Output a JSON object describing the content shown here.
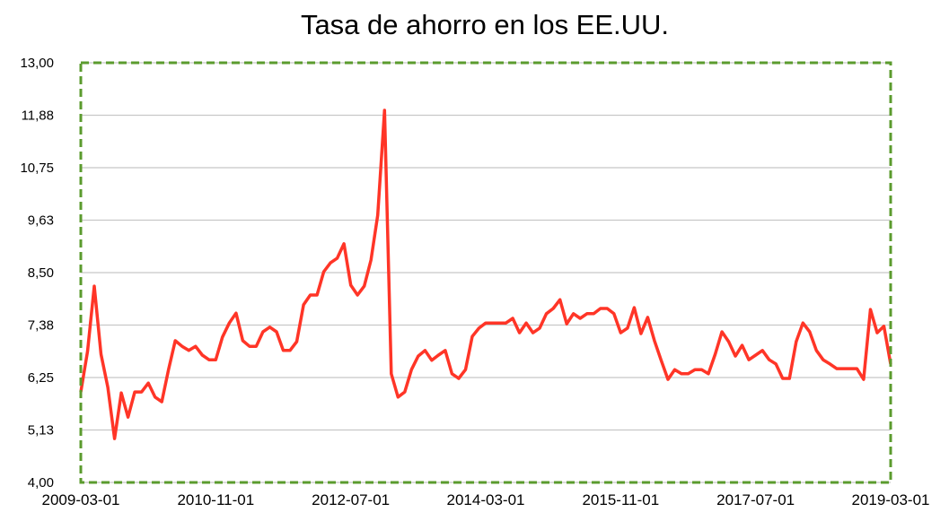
{
  "chart_data": {
    "type": "line",
    "title": "Tasa de ahorro en los EE.UU.",
    "xlabel": "",
    "ylabel": "",
    "x_start": "2009-03-01",
    "x_end": "2019-03-01",
    "x_frequency": "monthly",
    "x_tick_labels": [
      "2009-03-01",
      "2010-11-01",
      "2012-07-01",
      "2014-03-01",
      "2015-11-01",
      "2017-07-01",
      "2019-03-01"
    ],
    "y_tick_labels": [
      "4,00",
      "5,13",
      "6,25",
      "7,38",
      "8,50",
      "9,63",
      "10,75",
      "11,88",
      "13,00"
    ],
    "ylim": [
      4.0,
      13.0
    ],
    "grid": true,
    "legend": "none",
    "colors": {
      "series": "#ff3527",
      "frame": "#5b9b2e",
      "grid": "#c8c8c8"
    },
    "series": [
      {
        "name": "Tasa de ahorro",
        "values": [
          5.94,
          6.81,
          8.21,
          6.75,
          6.04,
          4.94,
          5.92,
          5.4,
          5.94,
          5.94,
          6.13,
          5.83,
          5.73,
          6.42,
          7.04,
          6.92,
          6.83,
          6.92,
          6.73,
          6.63,
          6.63,
          7.12,
          7.42,
          7.63,
          7.04,
          6.92,
          6.92,
          7.23,
          7.33,
          7.23,
          6.83,
          6.83,
          7.02,
          7.81,
          8.02,
          8.02,
          8.52,
          8.71,
          8.81,
          9.12,
          8.23,
          8.02,
          8.21,
          8.77,
          9.73,
          11.98,
          6.33,
          5.83,
          5.94,
          6.42,
          6.71,
          6.83,
          6.62,
          6.73,
          6.83,
          6.33,
          6.23,
          6.42,
          7.13,
          7.31,
          7.42,
          7.42,
          7.42,
          7.42,
          7.52,
          7.21,
          7.42,
          7.21,
          7.31,
          7.62,
          7.73,
          7.92,
          7.4,
          7.62,
          7.52,
          7.62,
          7.62,
          7.73,
          7.73,
          7.62,
          7.21,
          7.31,
          7.75,
          7.19,
          7.54,
          7.04,
          6.62,
          6.21,
          6.42,
          6.33,
          6.33,
          6.42,
          6.42,
          6.33,
          6.75,
          7.23,
          7.02,
          6.71,
          6.94,
          6.63,
          6.73,
          6.83,
          6.63,
          6.54,
          6.23,
          6.23,
          7.02,
          7.42,
          7.23,
          6.83,
          6.63,
          6.54,
          6.44,
          6.44,
          6.44,
          6.44,
          6.21,
          7.71,
          7.21,
          7.35,
          6.54
        ]
      }
    ]
  }
}
